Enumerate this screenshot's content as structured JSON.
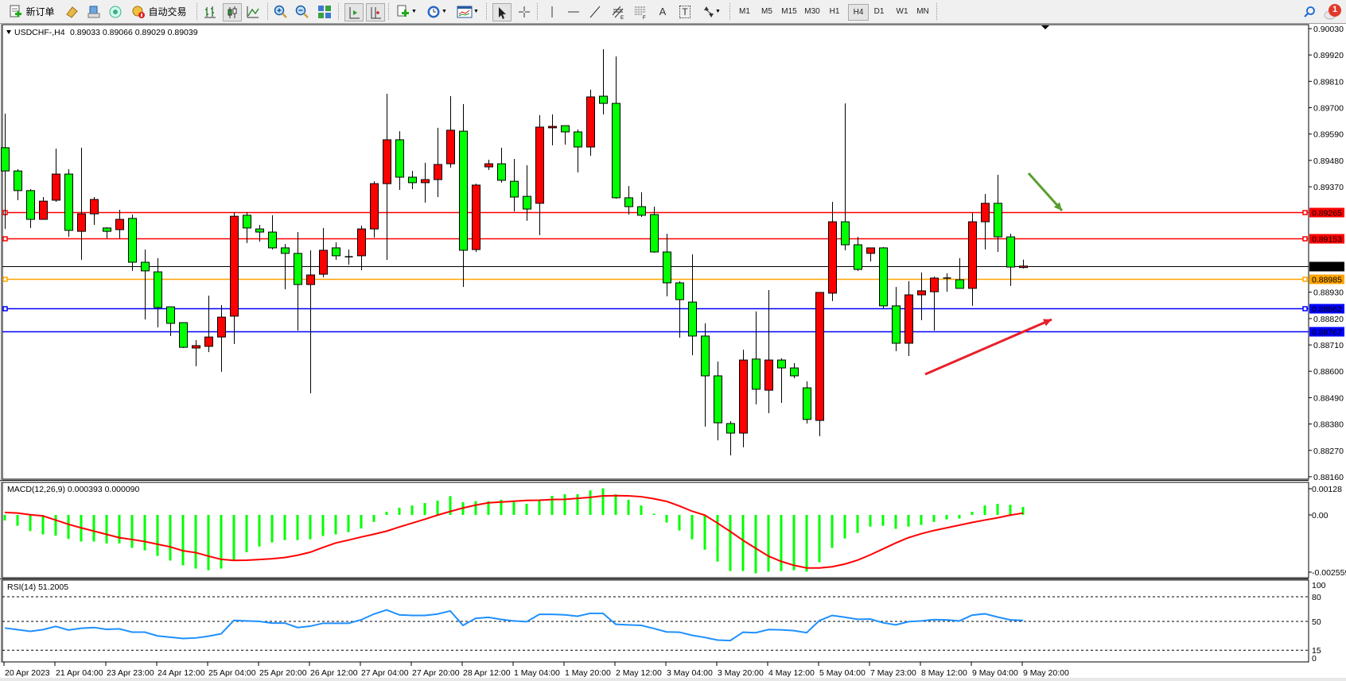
{
  "toolbar": {
    "new_order_label": "新订单",
    "auto_trading_label": "自动交易",
    "timeframes": [
      "M1",
      "M5",
      "M15",
      "M30",
      "H1",
      "H4",
      "D1",
      "W1",
      "MN"
    ],
    "active_timeframe": "H4",
    "notification_count": "1",
    "text_tool_label": "A",
    "text_label_tool_label": "T"
  },
  "chart": {
    "symbol_header": "USDCHF-,H4",
    "ohlc_header": "0.89033 0.89066 0.89029 0.89039",
    "colors": {
      "bear_candle": "#00ff00",
      "bull_candle": "#ff0000",
      "background": "#ffffff",
      "grid": "none"
    },
    "price_ticks": [
      "0.90030",
      "0.89920",
      "0.89810",
      "0.89700",
      "0.89590",
      "0.89480",
      "0.89370",
      "0.88930",
      "0.88820",
      "0.88710",
      "0.88600",
      "0.88490",
      "0.88380",
      "0.88270",
      "0.88160"
    ],
    "price_range": [
      0.8816,
      0.9003
    ],
    "levels": [
      {
        "price": "0.89265",
        "color": "#ff0000",
        "markers": true
      },
      {
        "price": "0.89153",
        "color": "#ff0000",
        "markers": true
      },
      {
        "price": "0.89039",
        "color": "#000000",
        "markers": false
      },
      {
        "price": "0.88985",
        "color": "#ffa500",
        "markers": true
      },
      {
        "price": "0.88862",
        "color": "#0000ff",
        "markers": true
      },
      {
        "price": "0.88767",
        "color": "#0000ff",
        "markers": false
      }
    ],
    "annotations": [
      {
        "type": "arrow",
        "color": "#5a9e2f",
        "direction": "down-right",
        "points_to": "0.89265"
      },
      {
        "type": "arrow",
        "color": "#e8202a",
        "direction": "up-right",
        "points_to": "0.88767"
      }
    ],
    "time_labels": [
      "20 Apr 2023",
      "21 Apr 04:00",
      "23 Apr 23:00",
      "24 Apr 12:00",
      "25 Apr 04:00",
      "25 Apr 20:00",
      "26 Apr 12:00",
      "27 Apr 04:00",
      "27 Apr 20:00",
      "28 Apr 12:00",
      "1 May 04:00",
      "1 May 20:00",
      "2 May 12:00",
      "3 May 04:00",
      "3 May 20:00",
      "4 May 12:00",
      "5 May 04:00",
      "7 May 23:00",
      "8 May 12:00",
      "9 May 04:00",
      "9 May 20:00"
    ],
    "candles_ohlc": [
      [
        0.89533,
        0.89675,
        0.89194,
        0.89436
      ],
      [
        0.89436,
        0.89443,
        0.89314,
        0.89354
      ],
      [
        0.89354,
        0.8936,
        0.89198,
        0.89234
      ],
      [
        0.89234,
        0.89327,
        0.89234,
        0.8931
      ],
      [
        0.89314,
        0.89529,
        0.89307,
        0.89423
      ],
      [
        0.89423,
        0.89443,
        0.89161,
        0.89188
      ],
      [
        0.89184,
        0.89533,
        0.89065,
        0.89257
      ],
      [
        0.89257,
        0.89327,
        0.89211,
        0.89317
      ],
      [
        0.89198,
        0.89201,
        0.89155,
        0.89184
      ],
      [
        0.89191,
        0.89274,
        0.89155,
        0.89234
      ],
      [
        0.89238,
        0.89254,
        0.89019,
        0.89055
      ],
      [
        0.89055,
        0.89108,
        0.88816,
        0.89019
      ],
      [
        0.89015,
        0.89072,
        0.88783,
        0.88866
      ],
      [
        0.88869,
        0.88869,
        0.88747,
        0.888
      ],
      [
        0.88803,
        0.88803,
        0.88697,
        0.887
      ],
      [
        0.88697,
        0.8873,
        0.88621,
        0.88707
      ],
      [
        0.88704,
        0.88916,
        0.8868,
        0.88743
      ],
      [
        0.88743,
        0.88876,
        0.88598,
        0.88826
      ],
      [
        0.8883,
        0.89264,
        0.88714,
        0.89247
      ],
      [
        0.89251,
        0.89264,
        0.89135,
        0.89198
      ],
      [
        0.89194,
        0.89211,
        0.89141,
        0.89181
      ],
      [
        0.89181,
        0.89251,
        0.89108,
        0.89115
      ],
      [
        0.89115,
        0.89131,
        0.88942,
        0.89092
      ],
      [
        0.89092,
        0.89181,
        0.8877,
        0.88962
      ],
      [
        0.88962,
        0.89105,
        0.88508,
        0.89002
      ],
      [
        0.89005,
        0.89198,
        0.88992,
        0.89105
      ],
      [
        0.89115,
        0.89138,
        0.89065,
        0.89082
      ],
      [
        0.89078,
        0.89108,
        0.89045,
        0.89078
      ],
      [
        0.89082,
        0.89208,
        0.89022,
        0.89194
      ],
      [
        0.89194,
        0.89393,
        0.89158,
        0.89383
      ],
      [
        0.89383,
        0.89758,
        0.89065,
        0.89566
      ],
      [
        0.89566,
        0.89602,
        0.89357,
        0.8941
      ],
      [
        0.8941,
        0.89436,
        0.8936,
        0.89387
      ],
      [
        0.89387,
        0.8947,
        0.89304,
        0.894
      ],
      [
        0.894,
        0.89616,
        0.89327,
        0.89463
      ],
      [
        0.89466,
        0.89748,
        0.8945,
        0.89606
      ],
      [
        0.89602,
        0.89715,
        0.88952,
        0.89105
      ],
      [
        0.89108,
        0.89383,
        0.89098,
        0.89377
      ],
      [
        0.89453,
        0.89483,
        0.8944,
        0.89466
      ],
      [
        0.89466,
        0.89533,
        0.89387,
        0.89397
      ],
      [
        0.89393,
        0.89486,
        0.89267,
        0.89327
      ],
      [
        0.8933,
        0.8946,
        0.89228,
        0.89277
      ],
      [
        0.89301,
        0.89669,
        0.89168,
        0.89619
      ],
      [
        0.89616,
        0.89672,
        0.89543,
        0.89622
      ],
      [
        0.89625,
        0.89625,
        0.89546,
        0.89599
      ],
      [
        0.89599,
        0.89609,
        0.8943,
        0.89536
      ],
      [
        0.89536,
        0.89775,
        0.89499,
        0.89745
      ],
      [
        0.89748,
        0.89944,
        0.89672,
        0.89718
      ],
      [
        0.89718,
        0.89914,
        0.8932,
        0.89324
      ],
      [
        0.89324,
        0.89373,
        0.89254,
        0.89287
      ],
      [
        0.89287,
        0.89347,
        0.89244,
        0.89251
      ],
      [
        0.89254,
        0.89287,
        0.89095,
        0.89098
      ],
      [
        0.89098,
        0.89174,
        0.88913,
        0.88969
      ],
      [
        0.88969,
        0.88976,
        0.8874,
        0.88899
      ],
      [
        0.88889,
        0.89088,
        0.88667,
        0.88747
      ],
      [
        0.88747,
        0.888,
        0.88369,
        0.88581
      ],
      [
        0.88581,
        0.88641,
        0.88312,
        0.88385
      ],
      [
        0.88382,
        0.88392,
        0.88249,
        0.88342
      ],
      [
        0.88342,
        0.8869,
        0.88283,
        0.88647
      ],
      [
        0.88651,
        0.8885,
        0.88462,
        0.88525
      ],
      [
        0.88521,
        0.88939,
        0.88425,
        0.88647
      ],
      [
        0.88647,
        0.88654,
        0.88468,
        0.88614
      ],
      [
        0.88614,
        0.88634,
        0.88571,
        0.88581
      ],
      [
        0.88531,
        0.88558,
        0.88382,
        0.88399
      ],
      [
        0.88395,
        0.88929,
        0.88329,
        0.88929
      ],
      [
        0.88926,
        0.89307,
        0.88893,
        0.89224
      ],
      [
        0.89224,
        0.89718,
        0.89105,
        0.89128
      ],
      [
        0.89128,
        0.89161,
        0.89019,
        0.89025
      ],
      [
        0.89092,
        0.89115,
        0.89058,
        0.89115
      ],
      [
        0.89115,
        0.89118,
        0.88863,
        0.88873
      ],
      [
        0.88873,
        0.88952,
        0.88684,
        0.88717
      ],
      [
        0.88717,
        0.88976,
        0.88664,
        0.88919
      ],
      [
        0.88919,
        0.89012,
        0.88813,
        0.88936
      ],
      [
        0.88932,
        0.88995,
        0.8877,
        0.88989
      ],
      [
        0.88989,
        0.89009,
        0.88932,
        0.88989
      ],
      [
        0.88982,
        0.89072,
        0.88946,
        0.88946
      ],
      [
        0.88946,
        0.89261,
        0.88873,
        0.89224
      ],
      [
        0.89224,
        0.8934,
        0.89108,
        0.89301
      ],
      [
        0.89301,
        0.8942,
        0.89098,
        0.89161
      ],
      [
        0.89161,
        0.89174,
        0.88956,
        0.89035
      ],
      [
        0.89033,
        0.89066,
        0.89029,
        0.89039
      ]
    ]
  },
  "macd": {
    "label": "MACD(12,26,9) 0.000393 0.000090",
    "ticks": [
      "0.00128",
      "0.00",
      "-0.002559"
    ],
    "range": [
      -0.003,
      0.00159
    ],
    "colors": {
      "histogram": "#00ff00",
      "signal": "#ff0000"
    },
    "main": [
      -0.00027,
      -0.00053,
      -0.00079,
      -0.00095,
      -0.00101,
      -0.00117,
      -0.0013,
      -0.0013,
      -0.00139,
      -0.00139,
      -0.00161,
      -0.00173,
      -0.002,
      -0.00223,
      -0.00246,
      -0.00262,
      -0.0027,
      -0.00262,
      -0.00221,
      -0.00182,
      -0.00154,
      -0.00134,
      -0.00123,
      -0.00123,
      -0.00119,
      -0.00103,
      -0.00095,
      -0.00084,
      -0.00066,
      -0.00034,
      0.00015,
      0.00035,
      0.00046,
      0.00058,
      0.0007,
      0.00092,
      0.00062,
      0.00067,
      0.00067,
      0.00074,
      0.00063,
      0.00054,
      0.0007,
      0.00093,
      0.00101,
      0.00101,
      0.0012,
      0.0013,
      0.00101,
      0.00074,
      0.00046,
      6e-05,
      -0.00037,
      -0.00076,
      -0.00119,
      -0.0017,
      -0.00228,
      -0.00274,
      -0.00274,
      -0.00285,
      -0.00277,
      -0.00274,
      -0.0027,
      -0.00277,
      -0.00231,
      -0.00161,
      -0.00115,
      -0.00088,
      -0.00057,
      -0.00053,
      -0.00068,
      -0.00057,
      -0.00049,
      -0.00034,
      -0.00022,
      -0.00018,
      0.00015,
      0.00046,
      0.00054,
      0.0005,
      0.00039
    ],
    "signal": [
      0.00012,
      9e-05,
      1e-05,
      -5e-05,
      -0.00025,
      -0.00046,
      -0.00063,
      -0.00079,
      -0.00095,
      -0.00111,
      -0.0012,
      -0.0013,
      -0.00143,
      -0.00156,
      -0.00175,
      -0.00184,
      -0.00201,
      -0.00217,
      -0.00222,
      -0.00221,
      -0.00218,
      -0.00214,
      -0.00208,
      -0.00197,
      -0.00182,
      -0.00159,
      -0.00137,
      -0.00123,
      -0.00108,
      -0.00094,
      -0.00079,
      -0.00059,
      -0.0004,
      -0.00021,
      -1e-05,
      0.00017,
      0.00034,
      0.00048,
      0.00059,
      0.00063,
      0.00067,
      0.00071,
      0.00072,
      0.00075,
      0.00076,
      0.00081,
      0.00086,
      0.00093,
      0.00094,
      0.00093,
      0.00089,
      0.00079,
      0.00066,
      0.00044,
      0.00018,
      -1e-05,
      -0.0004,
      -0.00081,
      -0.00124,
      -0.00163,
      -0.00201,
      -0.00227,
      -0.00246,
      -0.00259,
      -0.00259,
      -0.00253,
      -0.0024,
      -0.00221,
      -0.00195,
      -0.00166,
      -0.00137,
      -0.00111,
      -0.00092,
      -0.00076,
      -0.00063,
      -0.0005,
      -0.00037,
      -0.00025,
      -0.00014,
      -1e-05,
      9e-05
    ]
  },
  "rsi": {
    "label": "RSI(14) 51.2005",
    "ticks": [
      "100",
      "80",
      "50",
      "15",
      "0"
    ],
    "levels": [
      80,
      50,
      15
    ],
    "range": [
      0,
      100
    ],
    "color": "#1e90ff",
    "values": [
      42,
      40,
      38,
      40,
      44,
      39.5,
      41.7,
      42.6,
      40.4,
      41,
      37,
      37,
      32.4,
      30.8,
      29.2,
      29.9,
      32,
      35,
      51.3,
      50.6,
      50,
      48,
      48,
      42.6,
      44.2,
      47.8,
      47.8,
      47.8,
      52,
      59,
      64,
      58,
      57.3,
      57.3,
      59,
      62.8,
      45.2,
      53.8,
      55,
      52.5,
      50.6,
      49.7,
      58.6,
      58.6,
      58,
      56.4,
      59.9,
      59.9,
      46.5,
      45.8,
      45.2,
      41.4,
      37.2,
      36.9,
      33.1,
      30.5,
      27.3,
      26.7,
      36.9,
      36.3,
      40.1,
      39.8,
      38.8,
      36.3,
      51,
      57.3,
      55.1,
      52.6,
      52.9,
      48.4,
      45.8,
      49.7,
      50.6,
      52.2,
      51.9,
      50.6,
      57.7,
      59.3,
      55.4,
      51.9,
      51.2005
    ]
  }
}
